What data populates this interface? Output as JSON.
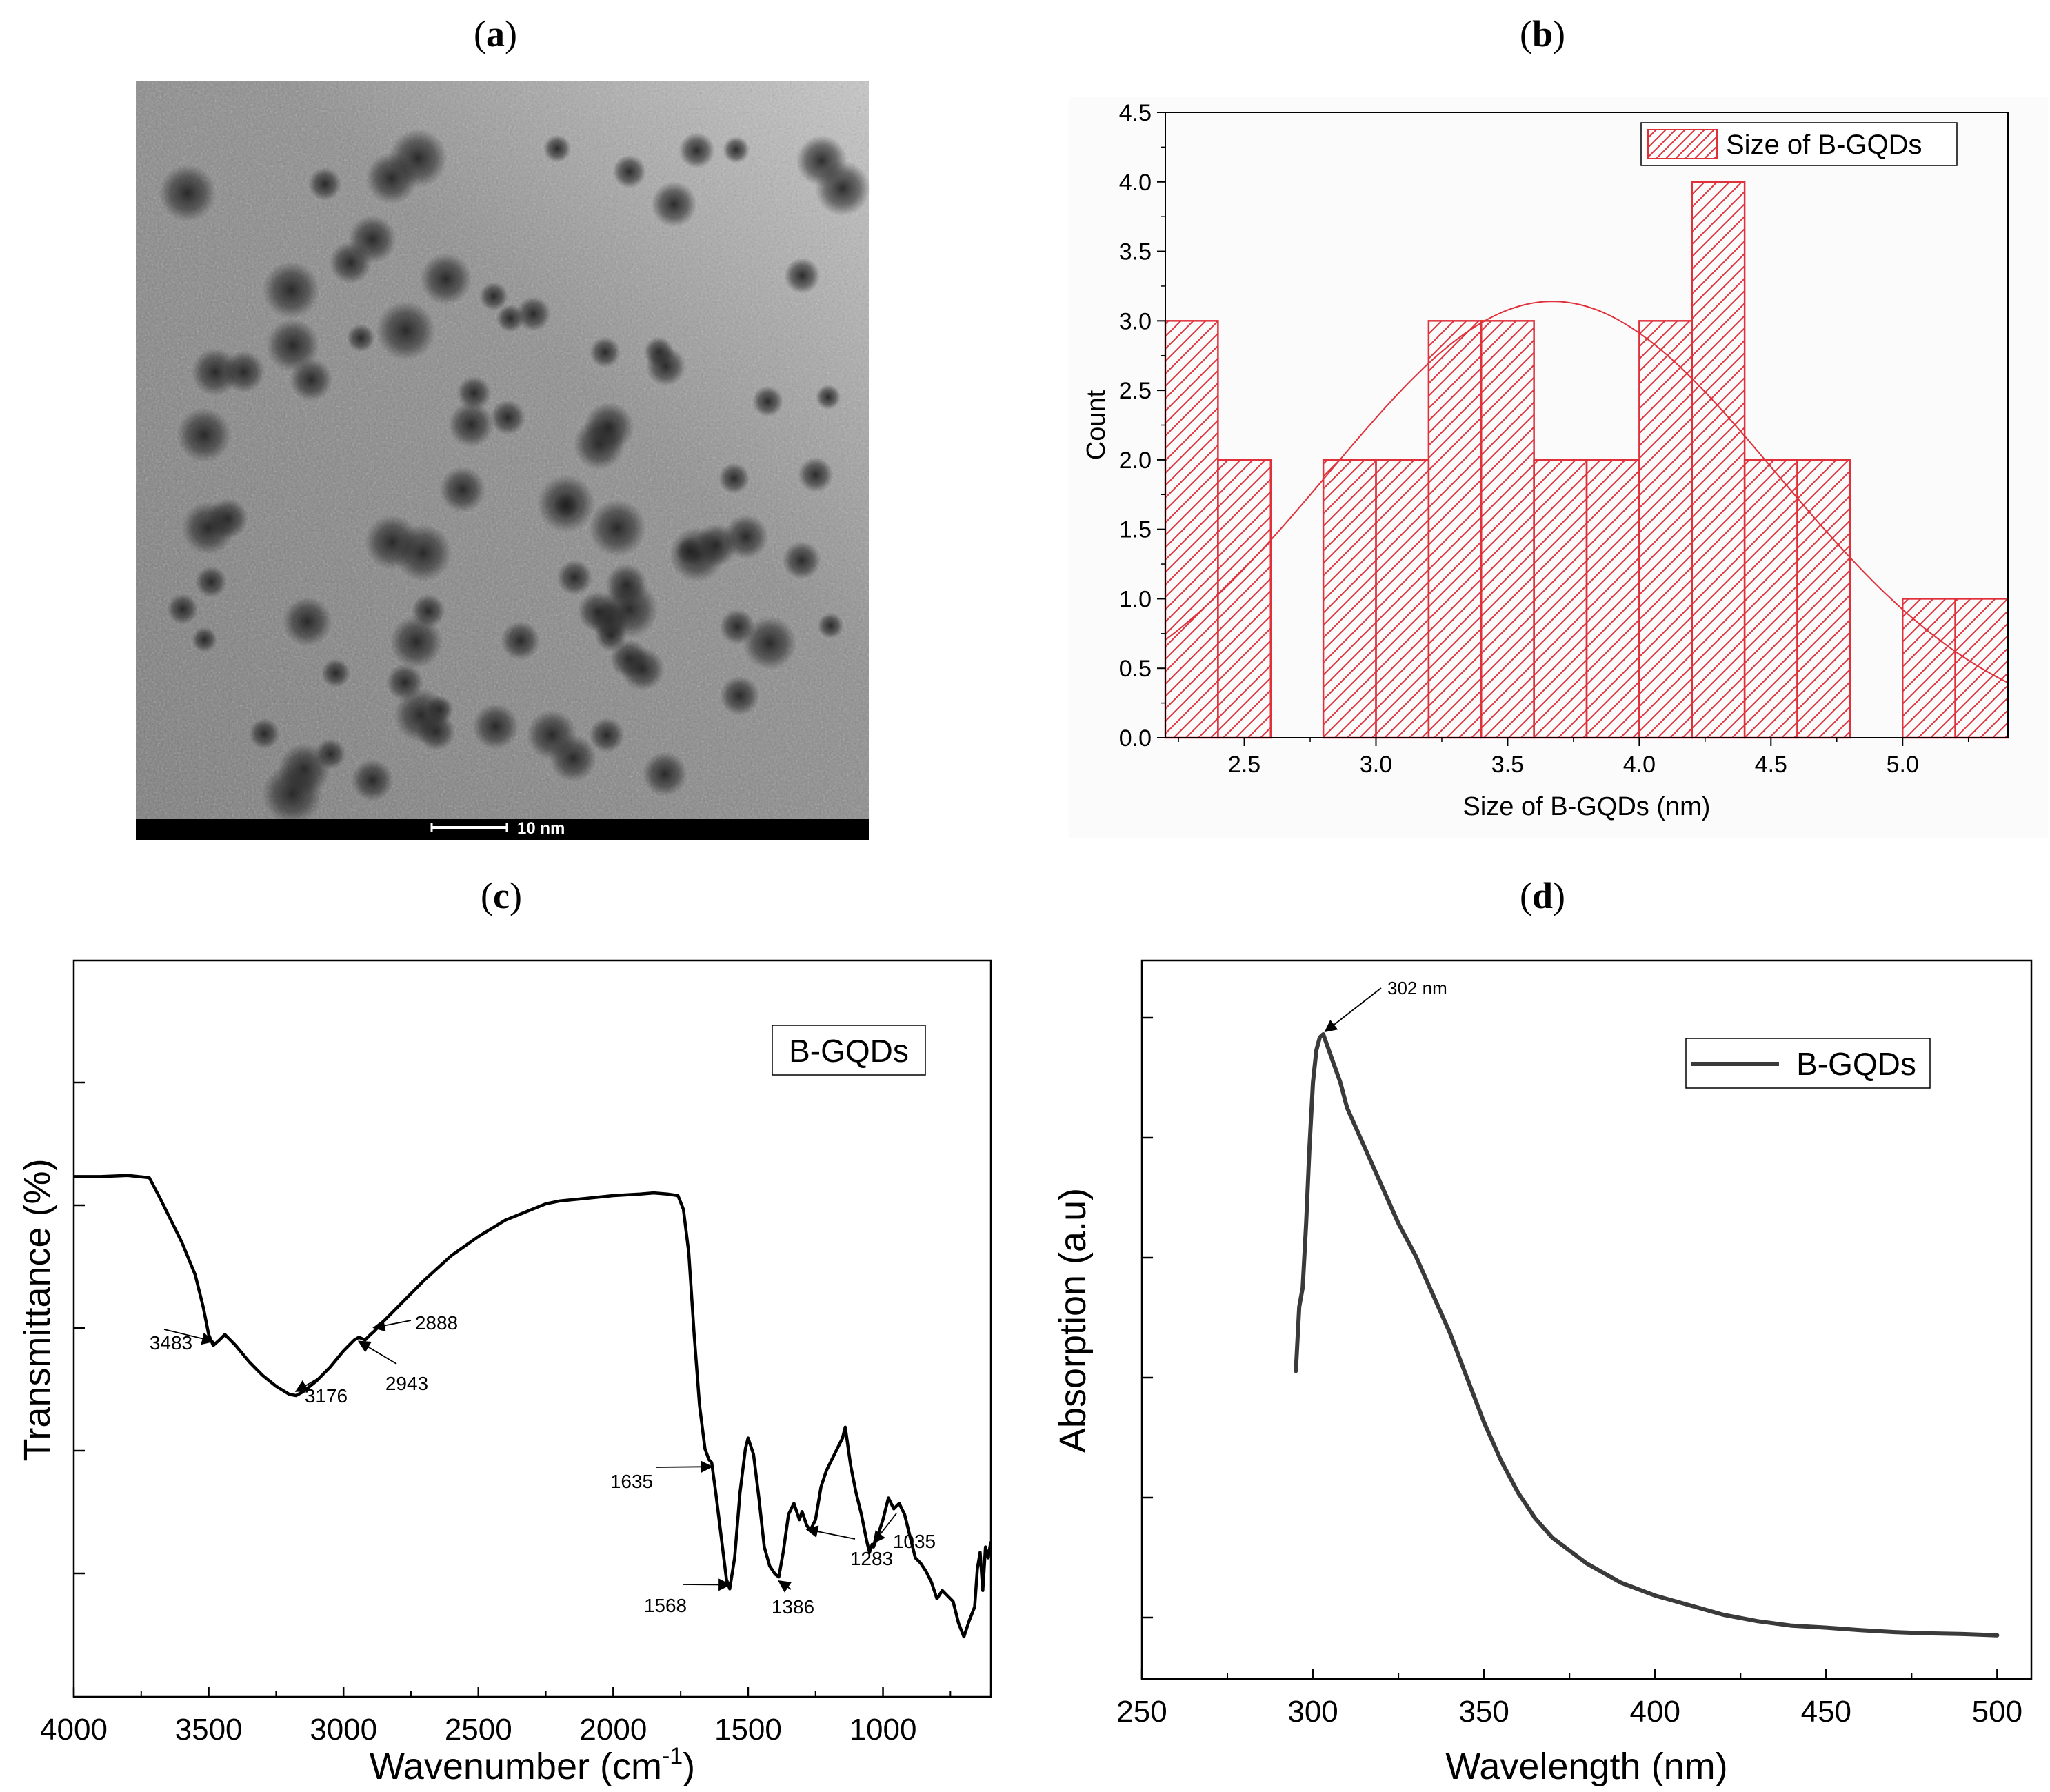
{
  "panels": {
    "a": {
      "label": "a"
    },
    "b": {
      "label": "b"
    },
    "c": {
      "label": "c"
    },
    "d": {
      "label": "d"
    }
  },
  "tem_image": {
    "scale_bar_label": "10 nm"
  },
  "chart_data": [
    {
      "panel": "b",
      "type": "bar",
      "title": "",
      "xlabel": "Size of B-GQDs (nm)",
      "ylabel": "Count",
      "legend": "Size of B-GQDs",
      "legend_position": "top-right",
      "xlim": [
        2.2,
        5.4
      ],
      "ylim": [
        0.0,
        4.5
      ],
      "xticks": [
        "2.5",
        "3.0",
        "3.5",
        "4.0",
        "4.5",
        "5.0"
      ],
      "yticks": [
        "0.0",
        "0.5",
        "1.0",
        "1.5",
        "2.0",
        "2.5",
        "3.0",
        "3.5",
        "4.0",
        "4.5"
      ],
      "bin_width": 0.2,
      "bins": [
        {
          "start": 2.2,
          "count": 3
        },
        {
          "start": 2.4,
          "count": 2
        },
        {
          "start": 2.8,
          "count": 2
        },
        {
          "start": 3.0,
          "count": 2
        },
        {
          "start": 3.2,
          "count": 3
        },
        {
          "start": 3.4,
          "count": 3
        },
        {
          "start": 3.6,
          "count": 2
        },
        {
          "start": 3.8,
          "count": 2
        },
        {
          "start": 4.0,
          "count": 3
        },
        {
          "start": 4.2,
          "count": 4
        },
        {
          "start": 4.4,
          "count": 2
        },
        {
          "start": 4.6,
          "count": 2
        },
        {
          "start": 5.0,
          "count": 1
        },
        {
          "start": 5.2,
          "count": 1
        }
      ],
      "fit": {
        "type": "gaussian",
        "mean": 3.67,
        "sigma": 0.85,
        "peak": 3.14
      },
      "color": "#e0303a"
    },
    {
      "panel": "c",
      "type": "line",
      "title": "",
      "xlabel": "Wavenumber (cm",
      "xlabel_sup": "-1",
      "xlabel_end": ")",
      "ylabel": "Transmittance (%)",
      "legend": "B-GQDs",
      "legend_position": "top-right",
      "xlim": [
        4000,
        600
      ],
      "ylim": [
        0,
        100
      ],
      "xticks": [
        "4000",
        "3500",
        "3000",
        "2500",
        "2000",
        "1500",
        "1000"
      ],
      "series": [
        {
          "name": "B-GQDs",
          "x": [
            4000,
            3900,
            3800,
            3720,
            3680,
            3600,
            3550,
            3520,
            3500,
            3483,
            3460,
            3440,
            3400,
            3350,
            3300,
            3250,
            3200,
            3176,
            3150,
            3100,
            3050,
            3000,
            2960,
            2943,
            2920,
            2900,
            2888,
            2860,
            2800,
            2700,
            2600,
            2500,
            2400,
            2300,
            2250,
            2200,
            2100,
            2000,
            1900,
            1850,
            1800,
            1760,
            1740,
            1720,
            1700,
            1680,
            1660,
            1645,
            1635,
            1620,
            1600,
            1580,
            1568,
            1550,
            1530,
            1510,
            1500,
            1480,
            1460,
            1440,
            1420,
            1400,
            1386,
            1370,
            1350,
            1330,
            1310,
            1300,
            1283,
            1270,
            1250,
            1230,
            1210,
            1190,
            1170,
            1150,
            1140,
            1120,
            1100,
            1080,
            1060,
            1050,
            1040,
            1035,
            1020,
            1000,
            980,
            960,
            940,
            920,
            900,
            880,
            860,
            840,
            820,
            800,
            780,
            760,
            740,
            720,
            700,
            680,
            660,
            650,
            640,
            630,
            620,
            610,
            600
          ],
          "y": [
            84,
            84,
            84.2,
            83.8,
            80,
            72,
            66,
            60,
            55,
            53,
            54,
            55,
            53,
            50,
            47.5,
            45.5,
            44,
            43.8,
            44.5,
            46.5,
            49,
            52,
            54,
            54.5,
            54,
            55,
            55.5,
            57,
            60,
            65,
            69.5,
            73,
            76,
            78,
            79,
            79.5,
            80,
            80.5,
            80.8,
            81,
            80.8,
            80.5,
            78,
            70,
            55,
            42,
            34,
            32,
            31.5,
            26,
            18,
            10,
            8.3,
            14,
            26,
            34,
            36,
            33,
            25,
            16,
            12.5,
            11,
            10.5,
            15,
            22,
            24,
            21,
            22.5,
            20,
            19,
            21,
            27,
            30,
            32,
            34,
            36,
            38,
            31,
            26,
            22,
            17,
            15,
            16.5,
            16,
            18,
            21,
            25,
            23,
            24,
            22,
            18,
            14,
            13,
            11.5,
            9.5,
            6.5,
            8,
            7,
            6,
            2,
            -0.5,
            2.5,
            5,
            12,
            15,
            8,
            16,
            14,
            17
          ]
        }
      ],
      "annotations": [
        "3483",
        "3176",
        "2943",
        "2888",
        "1635",
        "1568",
        "1386",
        "1283",
        "1035"
      ],
      "color": "#000000"
    },
    {
      "panel": "d",
      "type": "line",
      "title": "",
      "xlabel": "Wavelength (nm)",
      "ylabel": "Absorption (a.u)",
      "legend": "B-GQDs",
      "legend_position": "top-right",
      "xlim": [
        250,
        510
      ],
      "ylim": [
        -5,
        107
      ],
      "xticks": [
        "250",
        "300",
        "350",
        "400",
        "450",
        "500"
      ],
      "series": [
        {
          "name": "B-GQDs",
          "x": [
            295,
            296,
            297,
            298,
            299,
            300,
            301,
            302,
            303,
            304,
            306,
            308,
            310,
            315,
            320,
            325,
            330,
            335,
            340,
            345,
            350,
            355,
            360,
            365,
            370,
            375,
            380,
            390,
            400,
            410,
            420,
            430,
            440,
            450,
            460,
            470,
            480,
            490,
            500
          ],
          "y": [
            43,
            53,
            56,
            66,
            78,
            88,
            93,
            95,
            95.5,
            94,
            91,
            88,
            84,
            78,
            72,
            66,
            61,
            55,
            49,
            42,
            35,
            29,
            24,
            20,
            17,
            15,
            13,
            10,
            8,
            6.5,
            5,
            4,
            3.3,
            3,
            2.6,
            2.3,
            2.1,
            2,
            1.8
          ]
        }
      ],
      "peak_annotation": "302 nm",
      "color": "#3a3a3a"
    }
  ]
}
